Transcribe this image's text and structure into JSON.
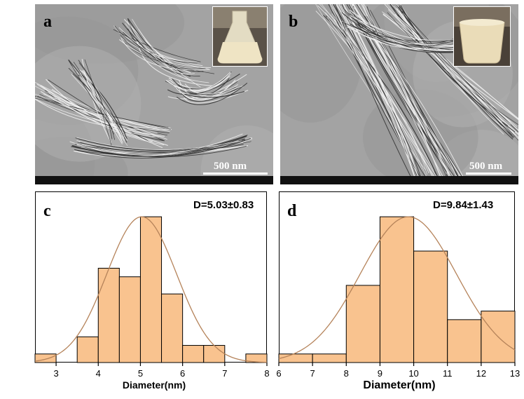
{
  "panels": {
    "a": {
      "label": "a",
      "scale": "500 nm"
    },
    "b": {
      "label": "b",
      "scale": "500 nm"
    },
    "c": {
      "label": "c",
      "stat": "D=5.03±0.83",
      "xlabel": "Diameter(nm)"
    },
    "d": {
      "label": "d",
      "stat": "D=9.84±1.43",
      "xlabel": "Diameter(nm)"
    }
  },
  "colors": {
    "bar_fill": "#f9c38f",
    "bar_edge": "#000000",
    "curve": "#b5835a"
  },
  "chart_data": [
    {
      "type": "bar",
      "panel": "c",
      "xlabel": "Diameter(nm)",
      "stat_label": "D=5.03±0.83",
      "xlim": [
        2.5,
        8
      ],
      "xticks": [
        3,
        4,
        5,
        6,
        7,
        8
      ],
      "bin_width": 0.5,
      "bin_starts": [
        2.5,
        3.0,
        3.5,
        4.0,
        4.5,
        5.0,
        5.5,
        6.0,
        6.5,
        7.0,
        7.5
      ],
      "values": [
        1,
        0,
        3,
        11,
        10,
        17,
        8,
        2,
        2,
        0,
        1
      ],
      "ylim": [
        0,
        17.5
      ],
      "fit": {
        "type": "normal",
        "mean": 5.03,
        "sd": 0.83
      }
    },
    {
      "type": "bar",
      "panel": "d",
      "xlabel": "Diameter(nm)",
      "stat_label": "D=9.84±1.43",
      "xlim": [
        6,
        13
      ],
      "xticks": [
        6,
        7,
        8,
        9,
        10,
        11,
        12,
        13
      ],
      "xtick_labels": [
        "6",
        "7",
        "8",
        "9",
        "10",
        "11",
        "12",
        "13"
      ],
      "bin_width": 1,
      "bin_starts": [
        6,
        7,
        8,
        9,
        10,
        11,
        12
      ],
      "values": [
        1,
        1,
        9,
        17,
        13,
        5,
        6
      ],
      "ylim": [
        0,
        17.5
      ],
      "fit": {
        "type": "normal",
        "mean": 9.84,
        "sd": 1.43
      }
    }
  ]
}
